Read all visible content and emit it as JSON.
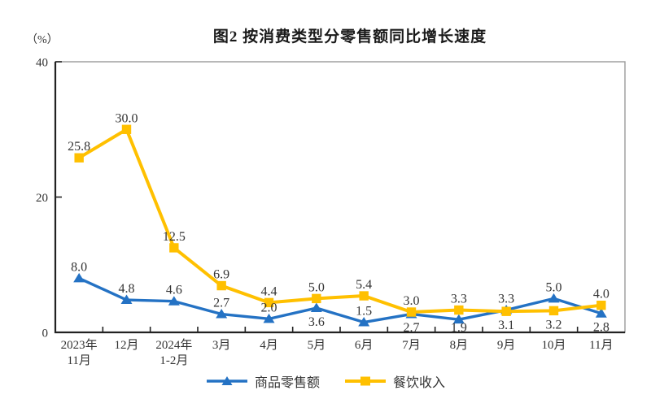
{
  "figure": {
    "title": "图2  按消费类型分零售额同比增长速度",
    "unit_label": "（%）"
  },
  "chart_data": {
    "type": "line",
    "title": "图2  按消费类型分零售额同比增长速度",
    "ylabel": "（%）",
    "ylim": [
      0,
      40
    ],
    "yticks": [
      0,
      20,
      40
    ],
    "grid": false,
    "legend_position": "bottom",
    "categories": [
      "2023年\n11月",
      "12月",
      "2024年\n1-2月",
      "3月",
      "4月",
      "5月",
      "6月",
      "7月",
      "8月",
      "9月",
      "10月",
      "11月"
    ],
    "series": [
      {
        "name": "商品零售额",
        "color": "#2472C4",
        "marker": "triangle",
        "values": [
          8.0,
          4.8,
          4.6,
          2.7,
          2.0,
          3.6,
          1.5,
          2.7,
          1.9,
          3.3,
          5.0,
          2.8
        ]
      },
      {
        "name": "餐饮收入",
        "color": "#FFC000",
        "marker": "square",
        "values": [
          25.8,
          30.0,
          12.5,
          6.9,
          4.4,
          5.0,
          5.4,
          3.0,
          3.3,
          3.1,
          3.2,
          4.0
        ]
      }
    ],
    "axis_color": "#222222",
    "border_color": "#999999",
    "label_color": "#333333"
  }
}
